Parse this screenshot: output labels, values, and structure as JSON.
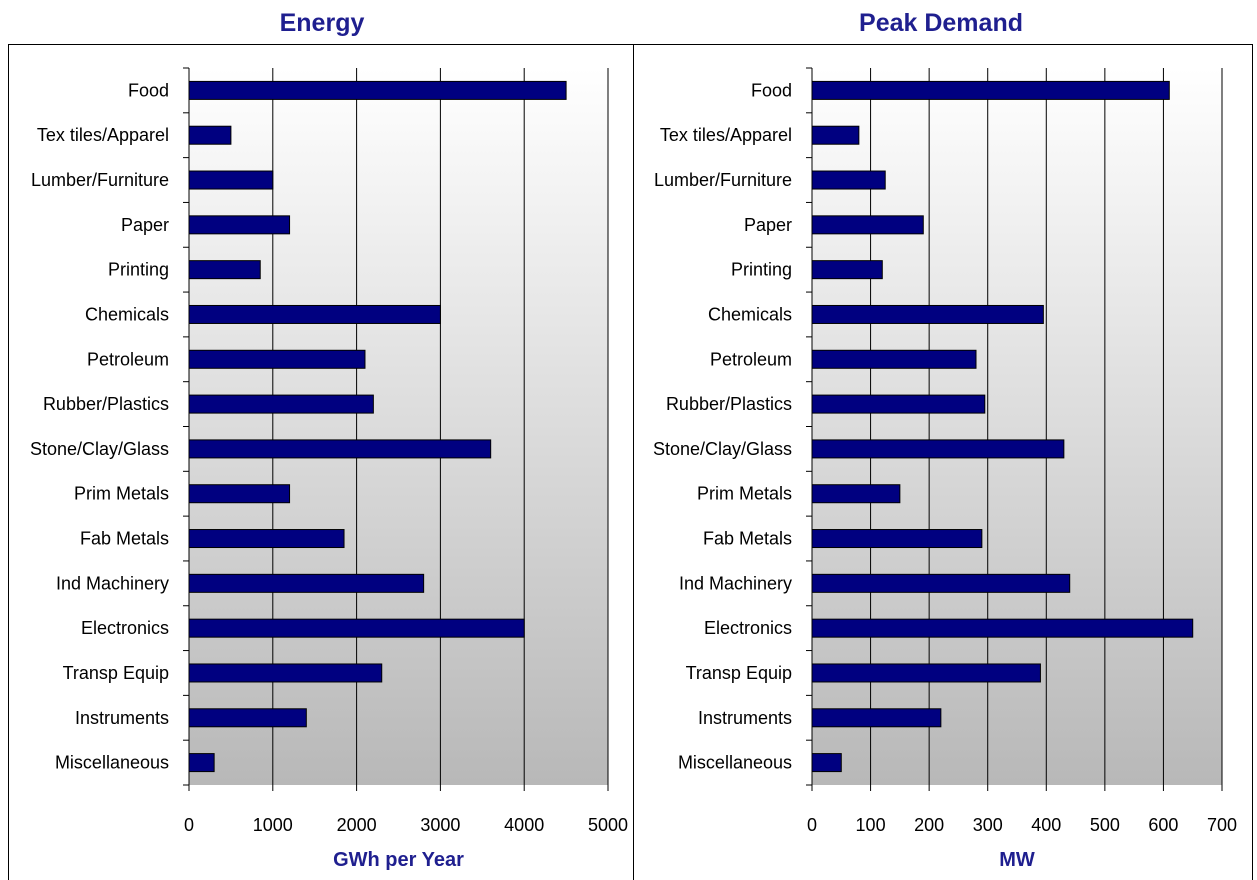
{
  "chart_data": [
    {
      "type": "bar",
      "orientation": "horizontal",
      "title": "Energy",
      "xlabel": "GWh per Year",
      "ylabel": "",
      "categories": [
        "Food",
        "Tex tiles/Apparel",
        "Lumber/Furniture",
        "Paper",
        "Printing",
        "Chemicals",
        "Petroleum",
        "Rubber/Plastics",
        "Stone/Clay/Glass",
        "Prim Metals",
        "Fab Metals",
        "Ind Machinery",
        "Electronics",
        "Transp Equip",
        "Instruments",
        "Miscellaneous"
      ],
      "values": [
        4500,
        500,
        1000,
        1200,
        850,
        3000,
        2100,
        2200,
        3600,
        1200,
        1850,
        2800,
        4000,
        2300,
        1400,
        300
      ],
      "xlim": [
        0,
        5000
      ],
      "ticks": [
        "0",
        "1000",
        "2000",
        "3000",
        "4000",
        "5000"
      ],
      "grid": true,
      "bar_color": "#000080"
    },
    {
      "type": "bar",
      "orientation": "horizontal",
      "title": "Peak Demand",
      "xlabel": "MW",
      "ylabel": "",
      "categories": [
        "Food",
        "Tex tiles/Apparel",
        "Lumber/Furniture",
        "Paper",
        "Printing",
        "Chemicals",
        "Petroleum",
        "Rubber/Plastics",
        "Stone/Clay/Glass",
        "Prim Metals",
        "Fab Metals",
        "Ind Machinery",
        "Electronics",
        "Transp Equip",
        "Instruments",
        "Miscellaneous"
      ],
      "values": [
        610,
        80,
        125,
        190,
        120,
        395,
        280,
        295,
        430,
        150,
        290,
        440,
        650,
        390,
        220,
        50
      ],
      "xlim": [
        0,
        700
      ],
      "ticks": [
        "0",
        "100",
        "200",
        "300",
        "400",
        "500",
        "600",
        "700"
      ],
      "grid": true,
      "bar_color": "#000080"
    }
  ]
}
